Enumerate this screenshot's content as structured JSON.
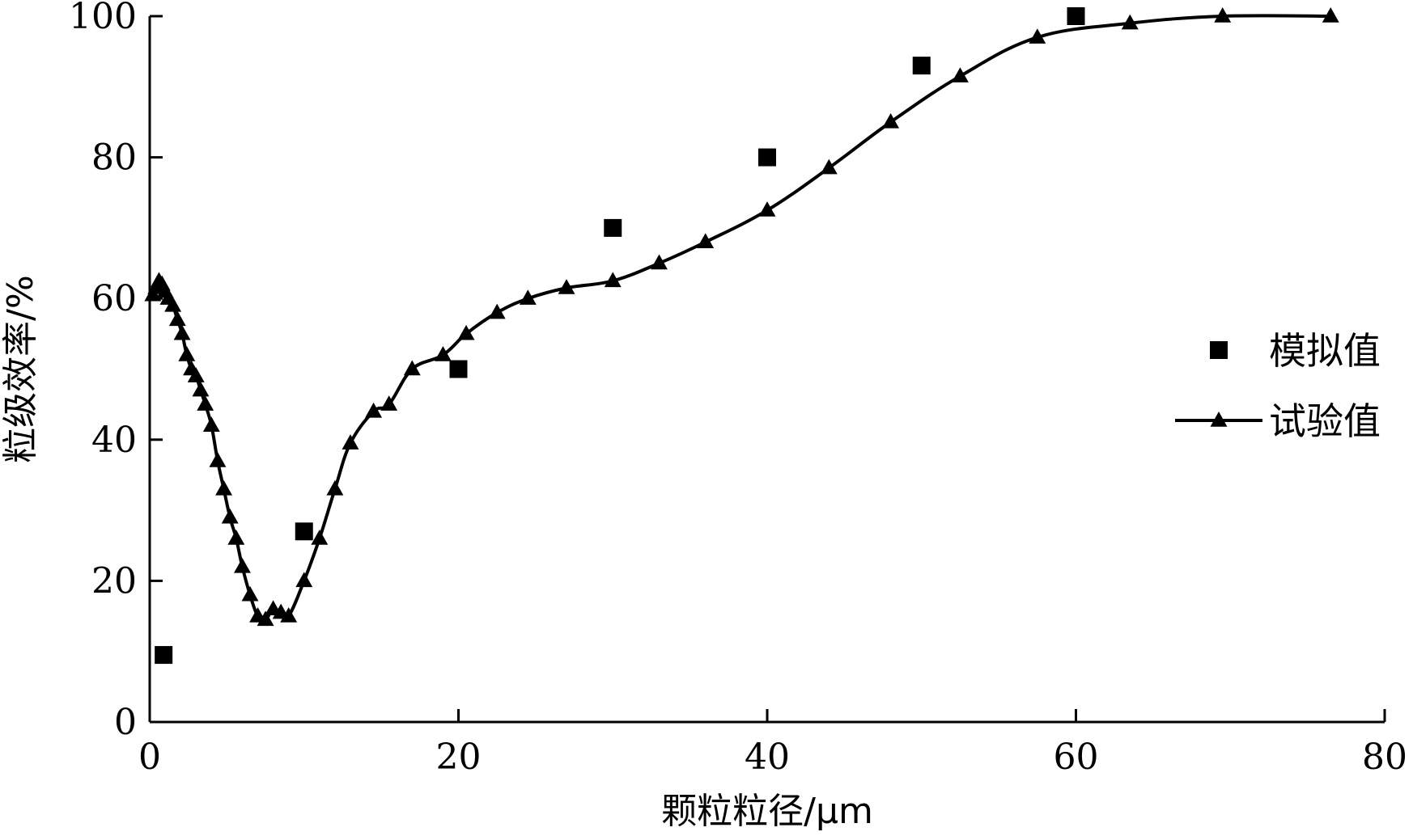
{
  "chart_data": {
    "type": "line",
    "xlabel": "颗粒粒径/μm",
    "ylabel": "粒级效率/%",
    "xlim": [
      0,
      80
    ],
    "ylim": [
      0,
      100
    ],
    "x_ticks": [
      0,
      20,
      40,
      60,
      80
    ],
    "y_ticks": [
      0,
      20,
      40,
      60,
      80,
      100
    ],
    "grid": false,
    "legend_position": "right",
    "series": [
      {
        "name": "模拟值",
        "marker": "square",
        "line": false,
        "color": "#000000",
        "x": [
          0.9,
          10,
          20,
          30,
          40,
          50,
          60
        ],
        "y": [
          9.5,
          27,
          50,
          70,
          80,
          93,
          100
        ]
      },
      {
        "name": "试验值",
        "marker": "triangle",
        "line": true,
        "color": "#000000",
        "x": [
          0.2,
          0.4,
          0.6,
          0.8,
          1.0,
          1.2,
          1.5,
          1.8,
          2.1,
          2.4,
          2.7,
          3.0,
          3.3,
          3.6,
          4.0,
          4.4,
          4.8,
          5.2,
          5.6,
          6.0,
          6.5,
          7.0,
          7.5,
          8.0,
          8.5,
          9.0,
          10.0,
          11.0,
          12.0,
          13.0,
          14.5,
          15.5,
          17.0,
          19.0,
          20.5,
          22.5,
          24.5,
          27.0,
          30.0,
          33.0,
          36.0,
          40.0,
          44.0,
          48.0,
          52.5,
          57.5,
          63.5,
          69.5,
          76.5
        ],
        "y": [
          60.5,
          61.5,
          62.5,
          62,
          61,
          60,
          59,
          57,
          55,
          52,
          50,
          49,
          47,
          45,
          42,
          37,
          33,
          29,
          26,
          22,
          18,
          15,
          14.5,
          16,
          15.5,
          15,
          20,
          26,
          33,
          39.5,
          44,
          45,
          50,
          52,
          55,
          58,
          60,
          61.5,
          62.5,
          65,
          68,
          72.5,
          78.5,
          85,
          91.5,
          97,
          99,
          100,
          100
        ]
      }
    ]
  }
}
